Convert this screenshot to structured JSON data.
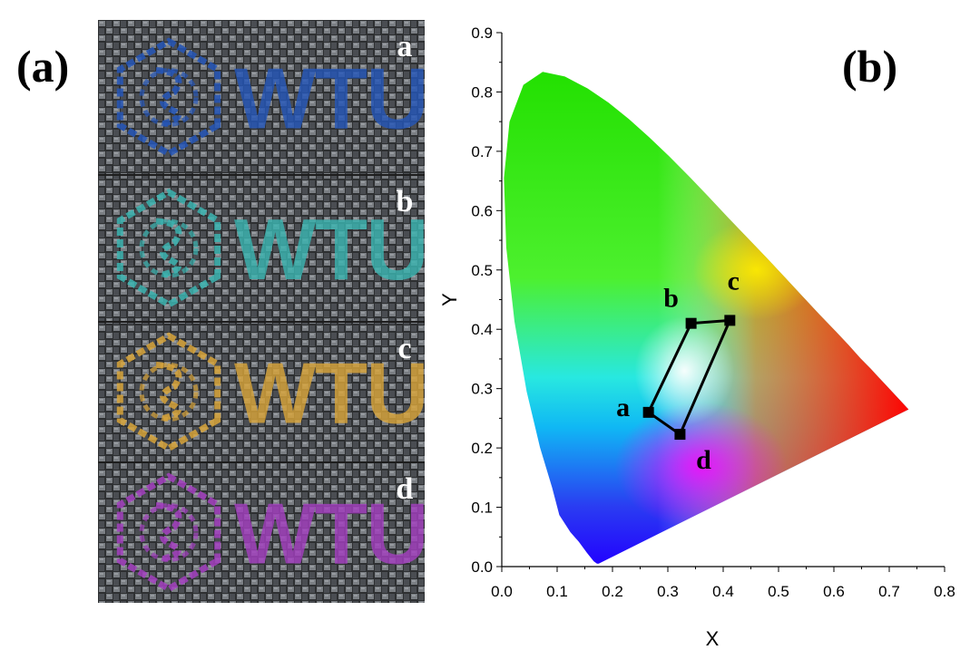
{
  "panel_labels": {
    "left": "(a)",
    "right": "(b)"
  },
  "photo": {
    "logo_text": "WTU",
    "samples": [
      {
        "letter": "a",
        "color": "#2556b8"
      },
      {
        "letter": "b",
        "color": "#3bb4b0"
      },
      {
        "letter": "c",
        "color": "#d8a43a"
      },
      {
        "letter": "d",
        "color": "#a33fbf"
      }
    ]
  },
  "chart_data": {
    "type": "scatter",
    "title": "",
    "xlabel": "X",
    "ylabel": "Y",
    "xlim": [
      0.0,
      0.8
    ],
    "ylim": [
      0.0,
      0.9
    ],
    "xticks": [
      "0.0",
      "0.1",
      "0.2",
      "0.3",
      "0.4",
      "0.5",
      "0.6",
      "0.7",
      "0.8"
    ],
    "yticks": [
      "0.0",
      "0.1",
      "0.2",
      "0.3",
      "0.4",
      "0.5",
      "0.6",
      "0.7",
      "0.8",
      "0.9"
    ],
    "grid": false,
    "background": "CIE 1931 chromaticity diagram",
    "points": [
      {
        "label": "a",
        "x": 0.265,
        "y": 0.26
      },
      {
        "label": "b",
        "x": 0.342,
        "y": 0.41
      },
      {
        "label": "c",
        "x": 0.412,
        "y": 0.415
      },
      {
        "label": "d",
        "x": 0.322,
        "y": 0.223
      }
    ],
    "polygon_order": [
      "a",
      "b",
      "c",
      "d"
    ]
  }
}
